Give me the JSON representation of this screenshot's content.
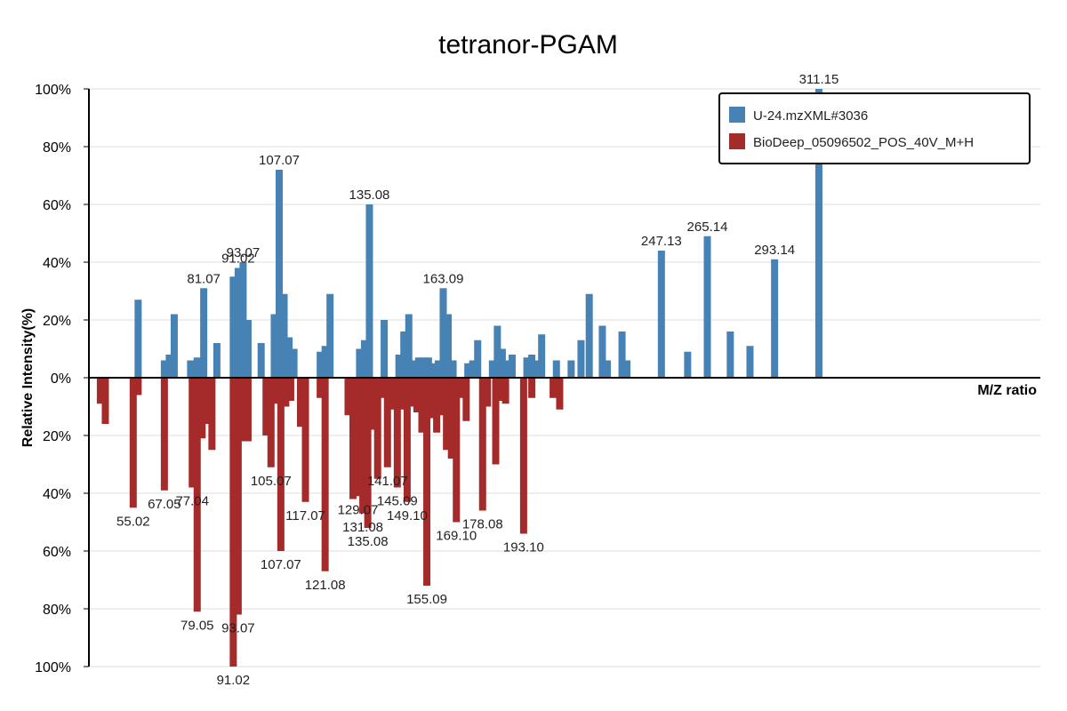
{
  "chart_data": {
    "type": "bar",
    "title": "tetranor-PGAM",
    "xlabel": "M/Z ratio",
    "ylabel": "Relative Intensity(%)",
    "ylim": [
      -100,
      100
    ],
    "yticks": [
      100,
      80,
      60,
      40,
      20,
      0,
      -20,
      -40,
      -60,
      -80,
      -100
    ],
    "ytick_labels": [
      "100%",
      "80%",
      "60%",
      "40%",
      "20%",
      "0%",
      "20%",
      "40%",
      "60%",
      "80%",
      "100%"
    ],
    "x_range": [
      40,
      330
    ],
    "grid": true,
    "legend_position": "top-right",
    "colors": {
      "query": "#4682B4",
      "reference": "#A52A2A"
    },
    "series": [
      {
        "name": "U-24.mzXML#3036",
        "color": "#4682B4",
        "points": [
          {
            "x": 55.0,
            "y": 27
          },
          {
            "x": 63.0,
            "y": 6
          },
          {
            "x": 64.5,
            "y": 8
          },
          {
            "x": 66.0,
            "y": 22
          },
          {
            "x": 71.0,
            "y": 6
          },
          {
            "x": 73.0,
            "y": 7
          },
          {
            "x": 75.0,
            "y": 31,
            "label": "81.07"
          },
          {
            "x": 79.0,
            "y": 12
          },
          {
            "x": 84.0,
            "y": 35
          },
          {
            "x": 85.5,
            "y": 38,
            "label": "91.02"
          },
          {
            "x": 87.0,
            "y": 40,
            "label": "93.07"
          },
          {
            "x": 88.5,
            "y": 20
          },
          {
            "x": 92.5,
            "y": 12
          },
          {
            "x": 96.5,
            "y": 22
          },
          {
            "x": 98.0,
            "y": 72,
            "label": "107.07"
          },
          {
            "x": 99.5,
            "y": 29
          },
          {
            "x": 101.0,
            "y": 14
          },
          {
            "x": 102.5,
            "y": 10
          },
          {
            "x": 110.5,
            "y": 9
          },
          {
            "x": 112.0,
            "y": 11
          },
          {
            "x": 113.5,
            "y": 29
          },
          {
            "x": 122.5,
            "y": 10
          },
          {
            "x": 124.0,
            "y": 13
          },
          {
            "x": 125.5,
            "y": 60,
            "label": "135.08"
          },
          {
            "x": 130.0,
            "y": 20
          },
          {
            "x": 134.5,
            "y": 8
          },
          {
            "x": 136.0,
            "y": 16
          },
          {
            "x": 137.5,
            "y": 22
          },
          {
            "x": 139.0,
            "y": 6
          },
          {
            "x": 140.5,
            "y": 7
          },
          {
            "x": 142.0,
            "y": 7
          },
          {
            "x": 143.5,
            "y": 7
          },
          {
            "x": 145.0,
            "y": 5
          },
          {
            "x": 146.5,
            "y": 6
          },
          {
            "x": 148.0,
            "y": 31,
            "label": "163.09"
          },
          {
            "x": 149.5,
            "y": 22
          },
          {
            "x": 151.0,
            "y": 6
          },
          {
            "x": 155.5,
            "y": 5
          },
          {
            "x": 157.0,
            "y": 6
          },
          {
            "x": 158.5,
            "y": 13
          },
          {
            "x": 163.0,
            "y": 6
          },
          {
            "x": 164.5,
            "y": 18
          },
          {
            "x": 166.0,
            "y": 10
          },
          {
            "x": 167.5,
            "y": 6
          },
          {
            "x": 169.0,
            "y": 8
          },
          {
            "x": 173.5,
            "y": 7
          },
          {
            "x": 175.0,
            "y": 8
          },
          {
            "x": 176.5,
            "y": 6
          },
          {
            "x": 178.0,
            "y": 15
          },
          {
            "x": 182.5,
            "y": 6
          },
          {
            "x": 187.0,
            "y": 6
          },
          {
            "x": 190.0,
            "y": 13
          },
          {
            "x": 192.5,
            "y": 29
          },
          {
            "x": 196.5,
            "y": 18
          },
          {
            "x": 198.0,
            "y": 6
          },
          {
            "x": 202.5,
            "y": 16
          },
          {
            "x": 204.0,
            "y": 6
          },
          {
            "x": 214.5,
            "y": 44,
            "label": "247.13"
          },
          {
            "x": 222.5,
            "y": 9
          },
          {
            "x": 228.5,
            "y": 49,
            "label": "265.14"
          },
          {
            "x": 235.5,
            "y": 16
          },
          {
            "x": 241.5,
            "y": 11
          },
          {
            "x": 249.0,
            "y": 41,
            "label": "293.14"
          },
          {
            "x": 262.5,
            "y": 100,
            "label": "311.15"
          }
        ]
      },
      {
        "name": "BioDeep_05096502_POS_40V_M+H",
        "color": "#A52A2A",
        "points": [
          {
            "x": 43.5,
            "y": 9
          },
          {
            "x": 45.0,
            "y": 16
          },
          {
            "x": 53.5,
            "y": 45,
            "label": "55.02"
          },
          {
            "x": 55.0,
            "y": 6
          },
          {
            "x": 63.0,
            "y": 39,
            "label": "67.05"
          },
          {
            "x": 71.5,
            "y": 38,
            "label": "77.04"
          },
          {
            "x": 73.0,
            "y": 81,
            "label": "79.05"
          },
          {
            "x": 74.5,
            "y": 21
          },
          {
            "x": 76.0,
            "y": 16
          },
          {
            "x": 77.5,
            "y": 25
          },
          {
            "x": 84.0,
            "y": 100,
            "label": "91.02"
          },
          {
            "x": 85.5,
            "y": 82,
            "label": "93.07"
          },
          {
            "x": 87.0,
            "y": 22
          },
          {
            "x": 88.5,
            "y": 22
          },
          {
            "x": 94.0,
            "y": 20
          },
          {
            "x": 95.5,
            "y": 31,
            "label": "105.07"
          },
          {
            "x": 97.0,
            "y": 9
          },
          {
            "x": 98.5,
            "y": 60,
            "label": "107.07"
          },
          {
            "x": 100.0,
            "y": 10
          },
          {
            "x": 101.5,
            "y": 8
          },
          {
            "x": 104.5,
            "y": 17
          },
          {
            "x": 106.0,
            "y": 43,
            "label": "117.07"
          },
          {
            "x": 110.5,
            "y": 7
          },
          {
            "x": 112.0,
            "y": 67,
            "label": "121.08"
          },
          {
            "x": 119.0,
            "y": 13
          },
          {
            "x": 120.5,
            "y": 42
          },
          {
            "x": 122.0,
            "y": 41,
            "label": "129.07"
          },
          {
            "x": 123.5,
            "y": 47,
            "label": "131.08"
          },
          {
            "x": 125.0,
            "y": 52,
            "label": "135.08"
          },
          {
            "x": 126.5,
            "y": 18
          },
          {
            "x": 128.0,
            "y": 35
          },
          {
            "x": 129.5,
            "y": 7
          },
          {
            "x": 131.0,
            "y": 31,
            "label": "141.07"
          },
          {
            "x": 132.5,
            "y": 11
          },
          {
            "x": 134.0,
            "y": 38,
            "label": "145.09"
          },
          {
            "x": 135.5,
            "y": 11
          },
          {
            "x": 137.0,
            "y": 43,
            "label": "149.10"
          },
          {
            "x": 138.5,
            "y": 10
          },
          {
            "x": 140.0,
            "y": 12
          },
          {
            "x": 141.5,
            "y": 19
          },
          {
            "x": 143.0,
            "y": 72,
            "label": "155.09"
          },
          {
            "x": 144.5,
            "y": 14
          },
          {
            "x": 146.0,
            "y": 19
          },
          {
            "x": 147.5,
            "y": 13
          },
          {
            "x": 149.0,
            "y": 25
          },
          {
            "x": 150.5,
            "y": 28
          },
          {
            "x": 152.0,
            "y": 50,
            "label": "169.10"
          },
          {
            "x": 153.5,
            "y": 7
          },
          {
            "x": 155.0,
            "y": 15
          },
          {
            "x": 160.0,
            "y": 46,
            "label": "178.08"
          },
          {
            "x": 161.5,
            "y": 10
          },
          {
            "x": 164.0,
            "y": 30
          },
          {
            "x": 165.5,
            "y": 8
          },
          {
            "x": 167.0,
            "y": 9
          },
          {
            "x": 172.5,
            "y": 54,
            "label": "193.10"
          },
          {
            "x": 175.0,
            "y": 7
          },
          {
            "x": 181.5,
            "y": 7
          },
          {
            "x": 183.5,
            "y": 11
          }
        ]
      }
    ]
  }
}
